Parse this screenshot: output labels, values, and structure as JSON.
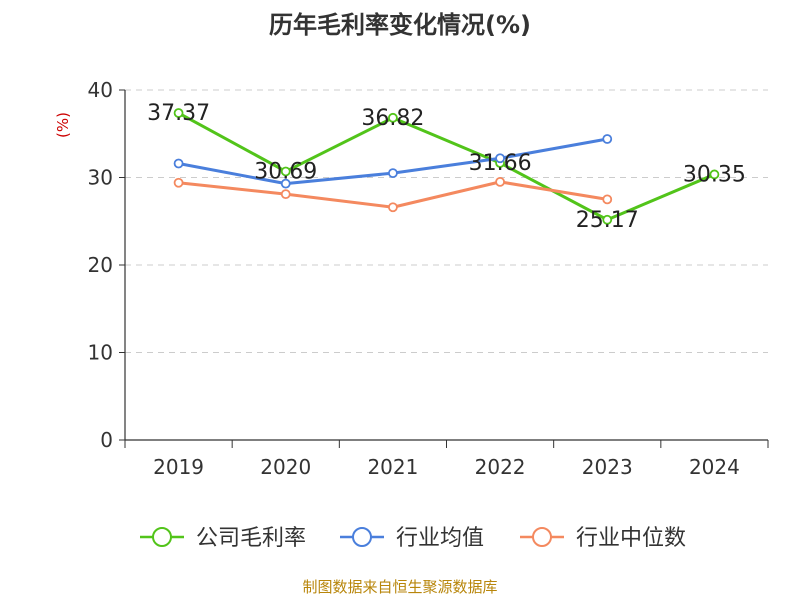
{
  "chart_data": {
    "type": "line",
    "title": "历年毛利率变化情况(%)",
    "ylabel": "(%)",
    "xlabel": "",
    "x": [
      "2019",
      "2020",
      "2021",
      "2022",
      "2023",
      "2024"
    ],
    "ylim": [
      0,
      40
    ],
    "yticks": [
      0,
      10,
      20,
      30,
      40
    ],
    "grid": true,
    "legend_placement": "bottom-center",
    "series": [
      {
        "name": "公司毛利率",
        "color": "#52c41a",
        "values": [
          37.37,
          30.69,
          36.82,
          31.66,
          25.17,
          30.35
        ],
        "labels": [
          "37.37",
          "30.69",
          "36.82",
          "31.66",
          "25.17",
          "30.35"
        ]
      },
      {
        "name": "行业均值",
        "color": "#4a7fdc",
        "values": [
          31.6,
          29.3,
          30.5,
          32.2,
          34.4,
          null
        ]
      },
      {
        "name": "行业中位数",
        "color": "#f4895f",
        "values": [
          29.4,
          28.1,
          26.6,
          29.5,
          27.5,
          null
        ]
      }
    ]
  },
  "footer": {
    "source": "制图数据来自恒生聚源数据库"
  },
  "colors": {
    "axis_label_red": "#cc0000",
    "footer_text": "#b8860b",
    "grid": "#cccccc",
    "axis": "#333333"
  }
}
